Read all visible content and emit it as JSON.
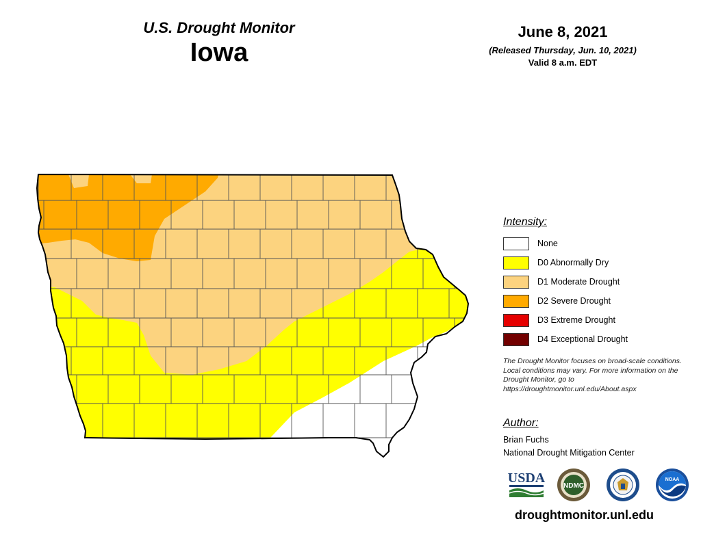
{
  "header": {
    "series_title": "U.S. Drought Monitor",
    "state_title": "Iowa",
    "map_date": "June 8, 2021",
    "release_note": "(Released Thursday, Jun. 10, 2021)",
    "valid_note": "Valid 8 a.m. EDT"
  },
  "legend": {
    "heading": "Intensity:",
    "items": [
      {
        "label": "None",
        "color": "#ffffff"
      },
      {
        "label": "D0 Abnormally Dry",
        "color": "#ffff00"
      },
      {
        "label": "D1 Moderate Drought",
        "color": "#fcd37f"
      },
      {
        "label": "D2 Severe Drought",
        "color": "#ffaa00"
      },
      {
        "label": "D3 Extreme Drought",
        "color": "#e60000"
      },
      {
        "label": "D4 Exceptional Drought",
        "color": "#730000"
      }
    ]
  },
  "disclaimer": "The Drought Monitor focuses on broad-scale conditions. Local conditions may vary. For more information on the Drought Monitor, go to https://droughtmonitor.unl.edu/About.aspx",
  "author": {
    "heading": "Author:",
    "name": "Brian Fuchs",
    "organization": "National Drought Mitigation Center"
  },
  "logos": [
    {
      "name": "USDA",
      "icon": "usda-logo"
    },
    {
      "name": "NDMC",
      "icon": "ndmc-logo"
    },
    {
      "name": "",
      "icon": "commerce-seal"
    },
    {
      "name": "NOAA",
      "icon": "noaa-logo"
    }
  ],
  "footer": {
    "site_url": "droughtmonitor.unl.edu"
  },
  "map": {
    "colors": {
      "none": "#ffffff",
      "d0": "#ffff00",
      "d1": "#fcd37f",
      "d2": "#ffaa00",
      "border": "#000000",
      "county_lines": "#555555"
    }
  }
}
